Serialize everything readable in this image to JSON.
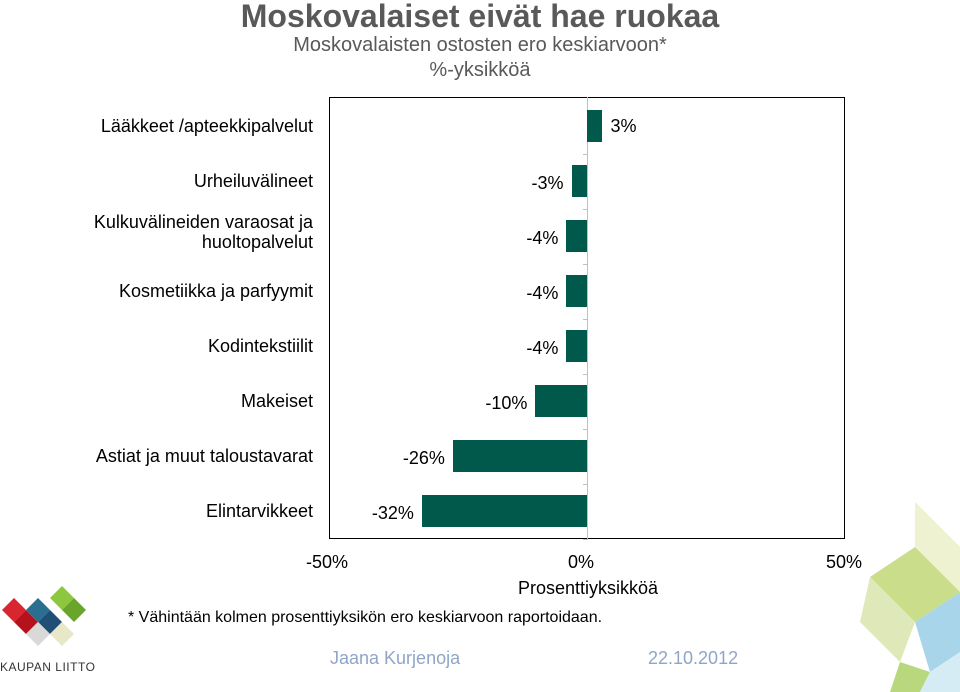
{
  "title": "Moskovalaiset eivät hae ruokaa",
  "subtitle": "Moskovalaisten ostosten ero keskiarvoon*",
  "subtitle2": "%-yksikköä",
  "chart_data": {
    "type": "bar",
    "orientation": "horizontal",
    "categories": [
      "Lääkkeet /apteekkipalvelut",
      "Urheiluvälineet",
      "Kulkuvälineiden varaosat ja huoltopalvelut",
      "Kosmetiikka ja parfyymit",
      "Kodintekstiilit",
      "Makeiset",
      "Astiat ja muut taloustavarat",
      "Elintarvikkeet"
    ],
    "values": [
      3,
      -3,
      -4,
      -4,
      -4,
      -10,
      -26,
      -32
    ],
    "value_labels": [
      "3%",
      "-3%",
      "-4%",
      "-4%",
      "-4%",
      "-10%",
      "-26%",
      "-32%"
    ],
    "xlim": [
      -50,
      50
    ],
    "xticks": [
      "-50%",
      "0%",
      "50%"
    ],
    "xlabel": "Prosenttiyksikköä",
    "bar_color": "#00594a"
  },
  "footnote": "* Vähintään kolmen prosenttiyksikön ero keskiarvoon raportoidaan.",
  "footer": {
    "author": "Jaana Kurjenoja",
    "date": "22.10.2012"
  },
  "logo": {
    "text": "KAUPAN LIITTO"
  }
}
